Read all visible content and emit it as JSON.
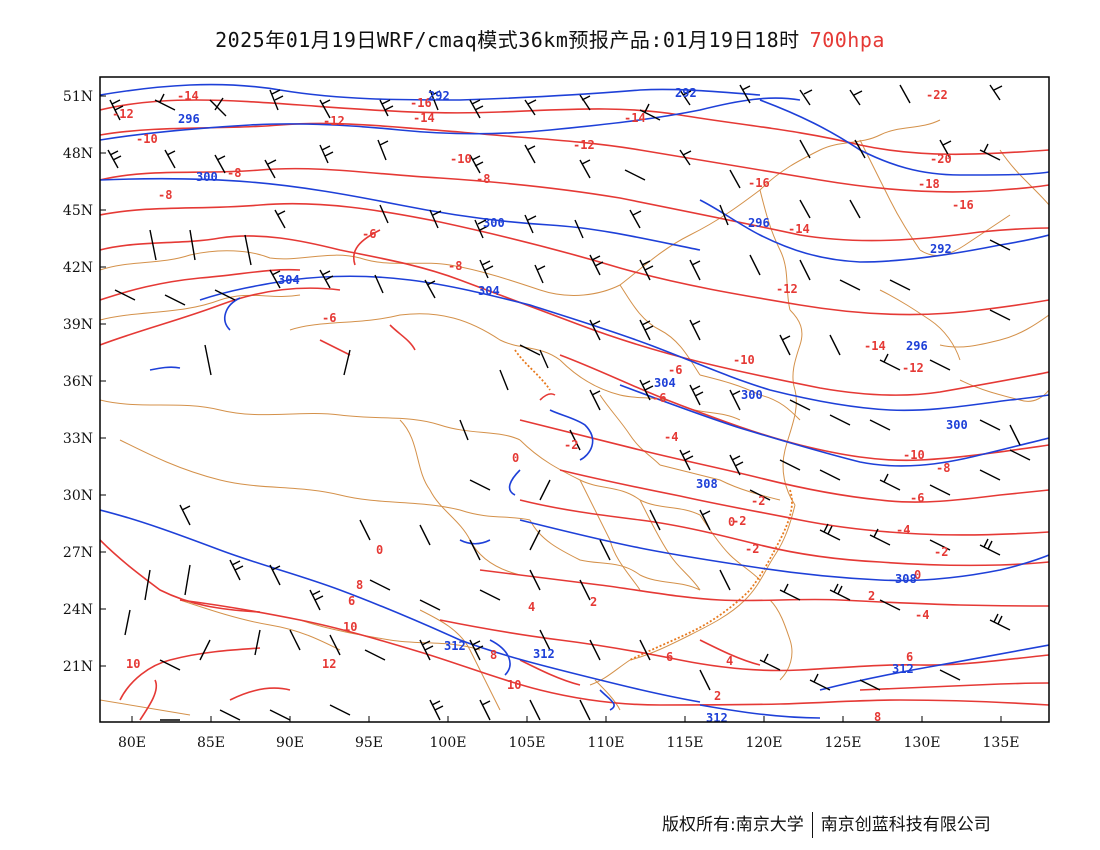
{
  "title": {
    "main": "2025年01月19日WRF/cmaq模式36km预报产品:01月19日18时",
    "level": "700hpa"
  },
  "axes": {
    "lon_ticks": [
      "80E",
      "85E",
      "90E",
      "95E",
      "100E",
      "105E",
      "110E",
      "115E",
      "120E",
      "125E",
      "130E",
      "135E"
    ],
    "lat_ticks": [
      "51N",
      "48N",
      "45N",
      "42N",
      "39N",
      "36N",
      "33N",
      "30N",
      "27N",
      "24N",
      "21N"
    ]
  },
  "contours": {
    "temperature_color": "#e53935",
    "height_color": "#1e40d8",
    "border_color": "#d4914a",
    "wind_color": "#000000",
    "temperature_labels": [
      "-14",
      "-16",
      "-14",
      "-12",
      "-12",
      "-14",
      "-10",
      "-10",
      "-12",
      "-16",
      "-22",
      "-20",
      "-18",
      "-16",
      "-8",
      "-8",
      "-6",
      "-8",
      "-14",
      "-12",
      "-8",
      "-6",
      "-14",
      "-12",
      "-10",
      "-6",
      "-6",
      "-10",
      "-8",
      "-4",
      "-2",
      "-6",
      "-4",
      "-2",
      "0",
      "-2",
      "0",
      "2",
      "2",
      "4",
      "6",
      "8",
      "10",
      "12",
      "10",
      "8",
      "10",
      "6",
      "4",
      "2",
      "-2",
      "-4",
      "6",
      "8",
      "0",
      "0",
      "-2"
    ],
    "height_labels": [
      "292",
      "296",
      "300",
      "300",
      "304",
      "304",
      "296",
      "292",
      "292",
      "296",
      "300",
      "300",
      "304",
      "308",
      "308",
      "312",
      "312",
      "312",
      "312"
    ]
  },
  "footer": {
    "left": "版权所有:南京大学",
    "right": "南京创蓝科技有限公司"
  }
}
